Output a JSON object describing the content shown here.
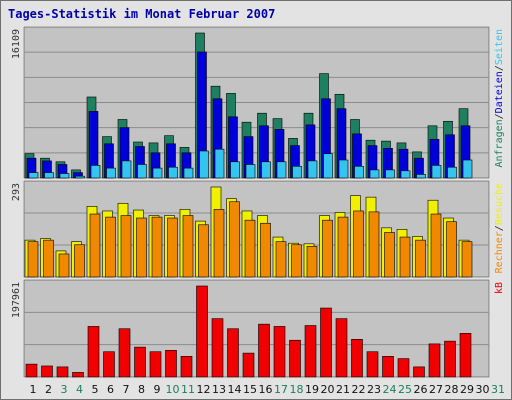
{
  "title": "Tages-Statistik im Monat Februar 2007",
  "colors": {
    "anfragen": "#1e8060",
    "dateien": "#0000d8",
    "seiten": "#33c4f0",
    "besuche": "#f0f000",
    "rechner": "#f08800",
    "kb": "#f00000",
    "weekday_label": "#111111",
    "weekend_label": "#1b7f5a",
    "panel_bg": "#c3c3c3",
    "grid": "#8c8c8c"
  },
  "chart_data": [
    {
      "type": "bar",
      "title": "",
      "ymax_label": "16109",
      "ylim": [
        0,
        16109
      ],
      "legend": [
        {
          "text": "Anfragen",
          "color": "#1e8060"
        },
        {
          "text": "/",
          "color": "#222222"
        },
        {
          "text": "Dateien",
          "color": "#0000d8"
        },
        {
          "text": "/",
          "color": "#222222"
        },
        {
          "text": "Seiten",
          "color": "#33c4f0"
        }
      ],
      "x": [
        1,
        2,
        3,
        4,
        5,
        6,
        7,
        8,
        9,
        10,
        11,
        12,
        13,
        14,
        15,
        16,
        17,
        18,
        19,
        20,
        21,
        22,
        23,
        24,
        25,
        26,
        27,
        28,
        29,
        30,
        31
      ],
      "series": [
        {
          "name": "Anfragen",
          "values": [
            2700,
            2200,
            1800,
            900,
            9000,
            4600,
            6500,
            4000,
            3900,
            4700,
            3400,
            16109,
            10200,
            9400,
            6200,
            7200,
            6600,
            4400,
            7200,
            11600,
            9300,
            6500,
            4200,
            4100,
            3900,
            2900,
            5800,
            6300,
            7700,
            0,
            0
          ]
        },
        {
          "name": "Dateien",
          "values": [
            2200,
            1900,
            1500,
            600,
            7400,
            3800,
            5600,
            3500,
            2800,
            3800,
            2800,
            14000,
            8800,
            6800,
            4600,
            5800,
            5400,
            3600,
            5900,
            8800,
            7700,
            4900,
            3600,
            3300,
            3200,
            2200,
            4300,
            4800,
            5800,
            0,
            0
          ]
        },
        {
          "name": "Seiten",
          "values": [
            600,
            600,
            500,
            200,
            1400,
            1100,
            1900,
            1500,
            1100,
            1200,
            1100,
            3000,
            3200,
            1800,
            1500,
            1800,
            1800,
            1300,
            1900,
            2700,
            2000,
            1300,
            900,
            900,
            800,
            400,
            1400,
            1200,
            2000,
            0,
            0
          ]
        }
      ]
    },
    {
      "type": "bar",
      "title": "",
      "ymax_label": "293",
      "ylim": [
        0,
        293
      ],
      "legend": [
        {
          "text": "Rechner",
          "color": "#f08800"
        },
        {
          "text": "/",
          "color": "#222222"
        },
        {
          "text": "Besuche",
          "color": "#f0f000"
        }
      ],
      "x": [
        1,
        2,
        3,
        4,
        5,
        6,
        7,
        8,
        9,
        10,
        11,
        12,
        13,
        14,
        15,
        16,
        17,
        18,
        19,
        20,
        21,
        22,
        23,
        24,
        25,
        26,
        27,
        28,
        29,
        30,
        31
      ],
      "series": [
        {
          "name": "Besuche",
          "values": [
            120,
            125,
            85,
            115,
            230,
            215,
            240,
            218,
            200,
            200,
            220,
            182,
            293,
            255,
            215,
            200,
            130,
            110,
            108,
            200,
            210,
            265,
            260,
            160,
            155,
            132,
            250,
            192,
            120,
            0,
            0
          ]
        },
        {
          "name": "Rechner",
          "values": [
            115,
            120,
            75,
            105,
            205,
            195,
            200,
            192,
            195,
            192,
            200,
            170,
            220,
            245,
            185,
            175,
            115,
            105,
            100,
            185,
            195,
            215,
            212,
            145,
            130,
            120,
            205,
            180,
            115,
            0,
            0
          ]
        }
      ]
    },
    {
      "type": "bar",
      "title": "",
      "ymax_label": "197961",
      "ylim": [
        0,
        197961
      ],
      "legend": [
        {
          "text": "kB",
          "color": "#f00000"
        }
      ],
      "x": [
        1,
        2,
        3,
        4,
        5,
        6,
        7,
        8,
        9,
        10,
        11,
        12,
        13,
        14,
        15,
        16,
        17,
        18,
        19,
        20,
        21,
        22,
        23,
        24,
        25,
        26,
        27,
        28,
        29,
        30,
        31
      ],
      "series": [
        {
          "name": "kB",
          "values": [
            28000,
            24000,
            22000,
            10000,
            110000,
            55000,
            105000,
            65000,
            55000,
            58000,
            45000,
            197961,
            127000,
            105000,
            52000,
            115000,
            110000,
            80000,
            112000,
            150000,
            127000,
            82000,
            55000,
            45000,
            40000,
            22000,
            72000,
            78000,
            95000,
            0,
            0
          ]
        }
      ]
    }
  ],
  "x_labels": [
    "1",
    "2",
    "3",
    "4",
    "5",
    "6",
    "7",
    "8",
    "9",
    "10",
    "11",
    "12",
    "13",
    "14",
    "15",
    "16",
    "17",
    "18",
    "19",
    "20",
    "21",
    "22",
    "23",
    "24",
    "25",
    "26",
    "27",
    "28",
    "29",
    "30",
    "31"
  ],
  "weekend_days": [
    3,
    4,
    10,
    11,
    17,
    18,
    24,
    25,
    31
  ]
}
